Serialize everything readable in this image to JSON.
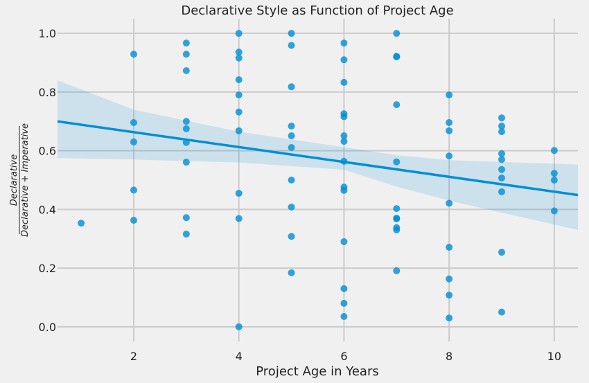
{
  "chart_data": {
    "type": "scatter",
    "title": "Declarative Style as Function of Project Age",
    "xlabel": "Project Age in Years",
    "ylabel": {
      "numerator": "Declarative",
      "denominator": "Declarative + Imperative"
    },
    "xlim": [
      0.55,
      10.45
    ],
    "ylim": [
      -0.05,
      1.05
    ],
    "xticks": [
      2,
      4,
      6,
      8,
      10
    ],
    "yticks": [
      0.0,
      0.2,
      0.4,
      0.6,
      0.8,
      1.0
    ],
    "ytick_labels": [
      "0.0",
      "0.2",
      "0.4",
      "0.6",
      "0.8",
      "1.0"
    ],
    "grid": true,
    "colors": {
      "points": "#008fd5",
      "line": "#008fd5",
      "band": "#008fd5",
      "grid": "#cbcbcb",
      "background": "#f0f0f0"
    },
    "points": [
      {
        "x": 1,
        "y": 0.353
      },
      {
        "x": 2,
        "y": 0.929
      },
      {
        "x": 2,
        "y": 0.696
      },
      {
        "x": 2,
        "y": 0.63
      },
      {
        "x": 2,
        "y": 0.466
      },
      {
        "x": 2,
        "y": 0.363
      },
      {
        "x": 3,
        "y": 0.967
      },
      {
        "x": 3,
        "y": 0.929
      },
      {
        "x": 3,
        "y": 0.873
      },
      {
        "x": 3,
        "y": 0.7
      },
      {
        "x": 3,
        "y": 0.675
      },
      {
        "x": 3,
        "y": 0.628
      },
      {
        "x": 3,
        "y": 0.561
      },
      {
        "x": 3,
        "y": 0.372
      },
      {
        "x": 3,
        "y": 0.316
      },
      {
        "x": 4,
        "y": 1.0
      },
      {
        "x": 4,
        "y": 0.936
      },
      {
        "x": 4,
        "y": 0.916
      },
      {
        "x": 4,
        "y": 0.842
      },
      {
        "x": 4,
        "y": 0.79
      },
      {
        "x": 4,
        "y": 0.732
      },
      {
        "x": 4,
        "y": 0.668
      },
      {
        "x": 4,
        "y": 0.455
      },
      {
        "x": 4,
        "y": 0.369
      },
      {
        "x": 4,
        "y": 0.0
      },
      {
        "x": 5,
        "y": 1.0
      },
      {
        "x": 5,
        "y": 0.959
      },
      {
        "x": 5,
        "y": 0.818
      },
      {
        "x": 5,
        "y": 0.684
      },
      {
        "x": 5,
        "y": 0.651
      },
      {
        "x": 5,
        "y": 0.611
      },
      {
        "x": 5,
        "y": 0.5
      },
      {
        "x": 5,
        "y": 0.408
      },
      {
        "x": 5,
        "y": 0.308
      },
      {
        "x": 5,
        "y": 0.184
      },
      {
        "x": 6,
        "y": 0.967
      },
      {
        "x": 6,
        "y": 0.91
      },
      {
        "x": 6,
        "y": 0.833
      },
      {
        "x": 6,
        "y": 0.726
      },
      {
        "x": 6,
        "y": 0.716
      },
      {
        "x": 6,
        "y": 0.651
      },
      {
        "x": 6,
        "y": 0.632
      },
      {
        "x": 6,
        "y": 0.564
      },
      {
        "x": 6,
        "y": 0.476
      },
      {
        "x": 6,
        "y": 0.465
      },
      {
        "x": 6,
        "y": 0.29
      },
      {
        "x": 6,
        "y": 0.13
      },
      {
        "x": 6,
        "y": 0.08
      },
      {
        "x": 6,
        "y": 0.035
      },
      {
        "x": 7,
        "y": 1.0
      },
      {
        "x": 7,
        "y": 0.922
      },
      {
        "x": 7,
        "y": 0.92
      },
      {
        "x": 7,
        "y": 0.757
      },
      {
        "x": 7,
        "y": 0.562
      },
      {
        "x": 7,
        "y": 0.403
      },
      {
        "x": 7,
        "y": 0.37
      },
      {
        "x": 7,
        "y": 0.368
      },
      {
        "x": 7,
        "y": 0.338
      },
      {
        "x": 7,
        "y": 0.33
      },
      {
        "x": 7,
        "y": 0.191
      },
      {
        "x": 8,
        "y": 0.79
      },
      {
        "x": 8,
        "y": 0.696
      },
      {
        "x": 8,
        "y": 0.668
      },
      {
        "x": 8,
        "y": 0.582
      },
      {
        "x": 8,
        "y": 0.421
      },
      {
        "x": 8,
        "y": 0.271
      },
      {
        "x": 8,
        "y": 0.163
      },
      {
        "x": 8,
        "y": 0.108
      },
      {
        "x": 8,
        "y": 0.03
      },
      {
        "x": 9,
        "y": 0.712
      },
      {
        "x": 9,
        "y": 0.684
      },
      {
        "x": 9,
        "y": 0.665
      },
      {
        "x": 9,
        "y": 0.59
      },
      {
        "x": 9,
        "y": 0.57
      },
      {
        "x": 9,
        "y": 0.536
      },
      {
        "x": 9,
        "y": 0.507
      },
      {
        "x": 9,
        "y": 0.46
      },
      {
        "x": 9,
        "y": 0.254
      },
      {
        "x": 9,
        "y": 0.05
      },
      {
        "x": 10,
        "y": 0.601
      },
      {
        "x": 10,
        "y": 0.523
      },
      {
        "x": 10,
        "y": 0.5
      },
      {
        "x": 10,
        "y": 0.395
      }
    ],
    "regression": {
      "x_start": 0.55,
      "y_start": 0.7,
      "x_end": 10.45,
      "y_end": 0.449
    },
    "confidence_band": {
      "x": [
        0.55,
        2,
        4,
        6,
        7,
        8,
        10.45
      ],
      "upper": [
        0.84,
        0.74,
        0.665,
        0.612,
        0.585,
        0.568,
        0.553
      ],
      "lower": [
        0.575,
        0.57,
        0.56,
        0.535,
        0.478,
        0.43,
        0.33
      ]
    }
  }
}
